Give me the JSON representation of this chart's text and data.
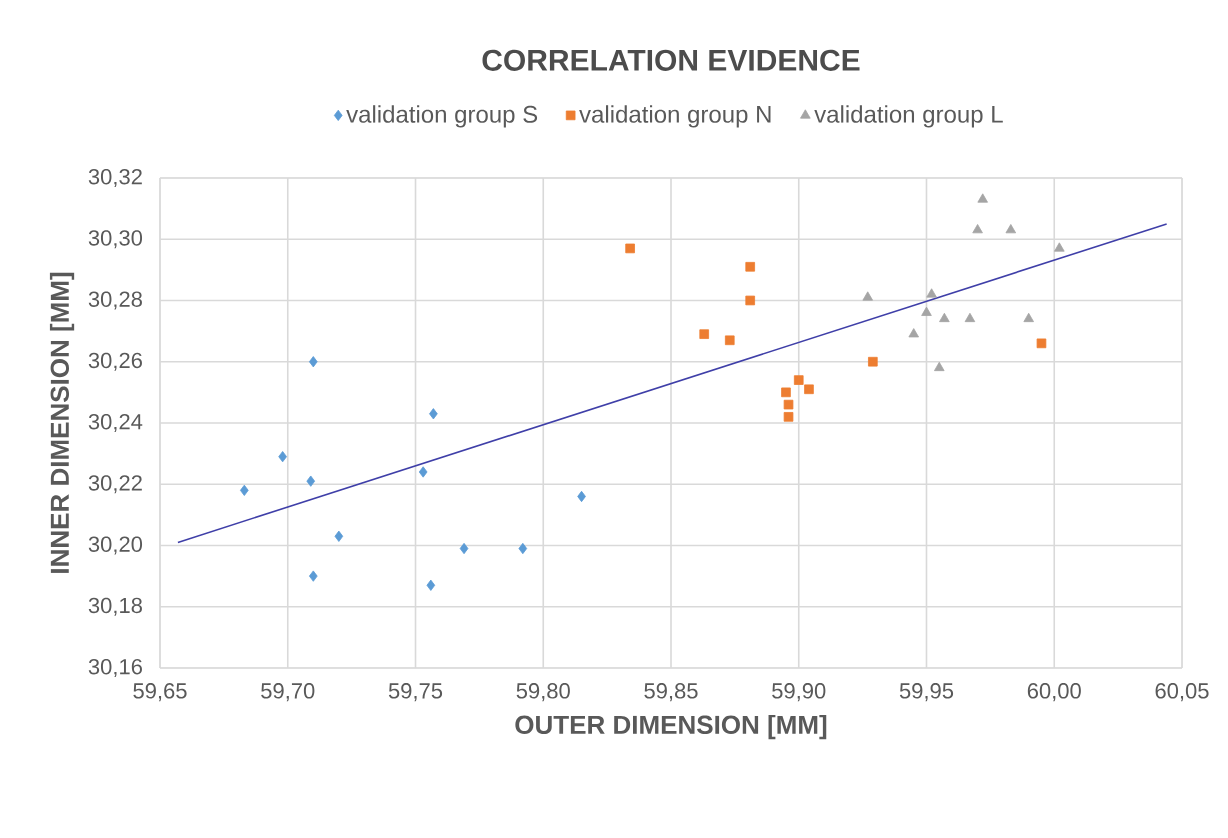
{
  "chart_data": {
    "type": "scatter",
    "title": "CORRELATION EVIDENCE",
    "xlabel": "OUTER DIMENSION [MM]",
    "ylabel": "INNER DIMENSION [MM]",
    "xlim": [
      59.65,
      60.05
    ],
    "ylim": [
      30.16,
      30.32
    ],
    "xticks": [
      {
        "value": 59.65,
        "label": "59,65"
      },
      {
        "value": 59.7,
        "label": "59,70"
      },
      {
        "value": 59.75,
        "label": "59,75"
      },
      {
        "value": 59.8,
        "label": "59,80"
      },
      {
        "value": 59.85,
        "label": "59,85"
      },
      {
        "value": 59.9,
        "label": "59,90"
      },
      {
        "value": 59.95,
        "label": "59,95"
      },
      {
        "value": 60.0,
        "label": "60,00"
      },
      {
        "value": 60.05,
        "label": "60,05"
      }
    ],
    "yticks": [
      {
        "value": 30.16,
        "label": "30,16"
      },
      {
        "value": 30.18,
        "label": "30,18"
      },
      {
        "value": 30.2,
        "label": "30,20"
      },
      {
        "value": 30.22,
        "label": "30,22"
      },
      {
        "value": 30.24,
        "label": "30,24"
      },
      {
        "value": 30.26,
        "label": "30,26"
      },
      {
        "value": 30.28,
        "label": "30,28"
      },
      {
        "value": 30.3,
        "label": "30,30"
      },
      {
        "value": 30.32,
        "label": "30,32"
      }
    ],
    "grid": true,
    "legend": "top",
    "series": [
      {
        "name": "validation group S",
        "color": "#5b9bd5",
        "marker": "diamond",
        "x": [
          59.683,
          59.698,
          59.71,
          59.709,
          59.72,
          59.71,
          59.757,
          59.753,
          59.756,
          59.769,
          59.792,
          59.815
        ],
        "values": [
          30.218,
          30.229,
          30.26,
          30.221,
          30.203,
          30.19,
          30.243,
          30.224,
          30.187,
          30.199,
          30.199,
          30.216
        ]
      },
      {
        "name": "validation group N",
        "color": "#ed7d31",
        "marker": "square",
        "x": [
          59.834,
          59.881,
          59.881,
          59.863,
          59.873,
          59.9,
          59.904,
          59.895,
          59.896,
          59.896,
          59.929,
          59.995
        ],
        "values": [
          30.297,
          30.291,
          30.28,
          30.269,
          30.267,
          30.254,
          30.251,
          30.25,
          30.246,
          30.242,
          30.26,
          30.266
        ]
      },
      {
        "name": "validation group L",
        "color": "#a5a5a5",
        "marker": "triangle",
        "x": [
          59.972,
          59.97,
          59.983,
          60.002,
          59.927,
          59.952,
          59.95,
          59.957,
          59.967,
          59.99,
          59.945,
          59.955
        ],
        "values": [
          30.313,
          30.303,
          30.303,
          30.297,
          30.281,
          30.282,
          30.276,
          30.274,
          30.274,
          30.274,
          30.269,
          30.258
        ]
      },
      {
        "type": "line",
        "color": "#3f3fa8",
        "marker": "none",
        "x": [
          59.657,
          60.044
        ],
        "values": [
          30.201,
          30.305
        ]
      }
    ]
  }
}
